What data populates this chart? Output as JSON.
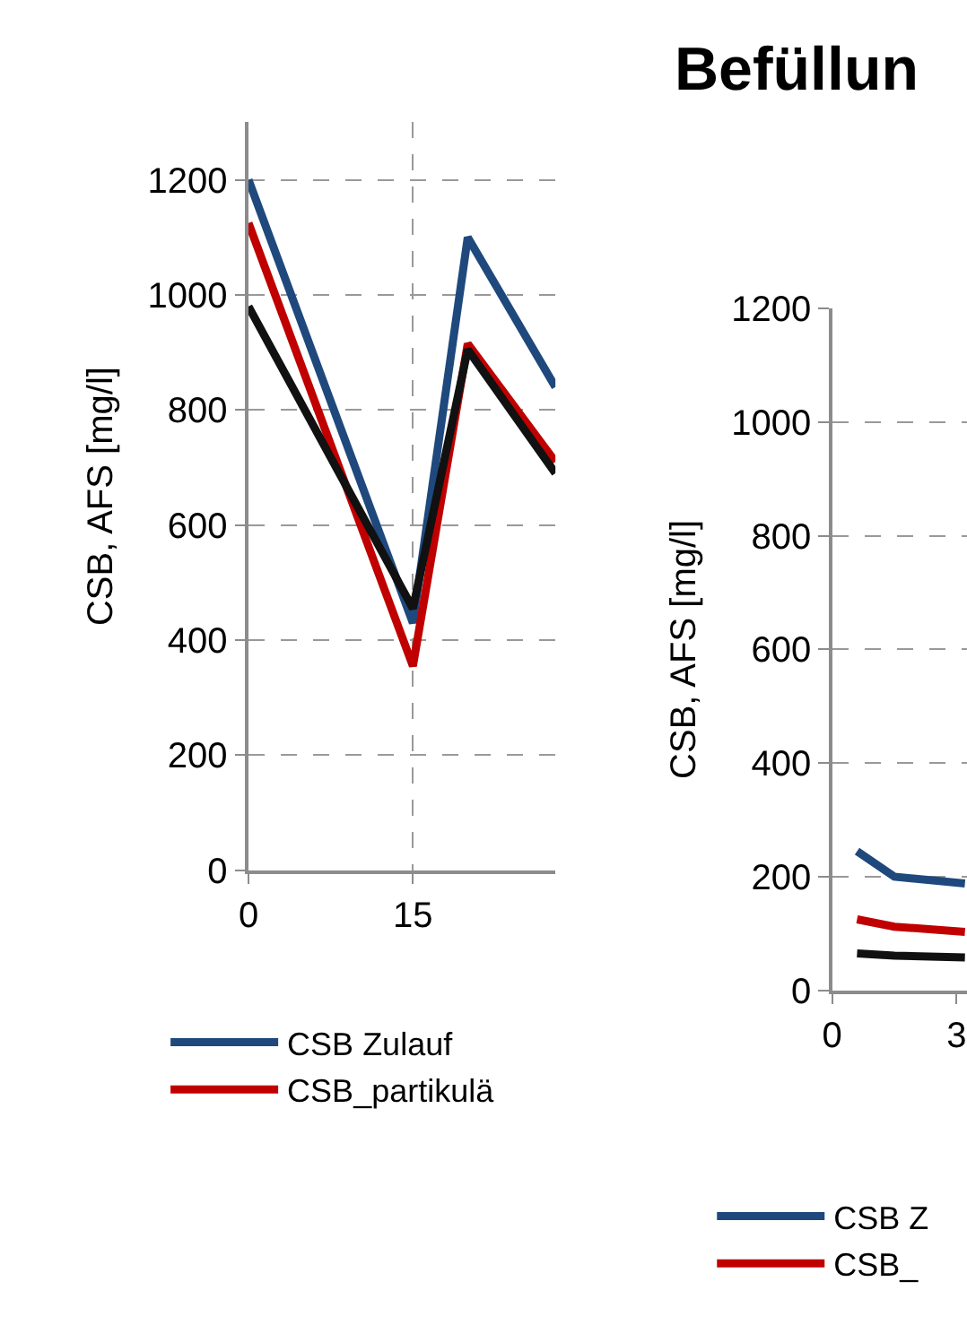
{
  "chart_data": [
    {
      "type": "line",
      "ylabel": "CSB, AFS [mg/l]",
      "x": [
        0,
        15,
        20,
        28
      ],
      "xlim": [
        0,
        28
      ],
      "xticks": [
        0,
        15
      ],
      "ylim": [
        0,
        1300
      ],
      "yticks": [
        0,
        200,
        400,
        600,
        800,
        1000,
        1200
      ],
      "grid": true,
      "legend": "bottom",
      "marker": "none",
      "line_style": "solid",
      "series": [
        {
          "name": "CSB Zulauf",
          "color": "#1f497d",
          "values": [
            1200,
            430,
            1100,
            840
          ]
        },
        {
          "name": "CSB_partikulä",
          "color": "#c00000",
          "values": [
            1125,
            355,
            915,
            710
          ]
        },
        {
          "color": "#111111",
          "values": [
            980,
            455,
            905,
            690
          ]
        }
      ]
    },
    {
      "type": "line",
      "title": "Befüllun",
      "ylabel": "CSB, AFS [mg/l]",
      "x": [
        0.6,
        1.5,
        3.2
      ],
      "xlim": [
        0,
        3.25
      ],
      "xticks": [
        0,
        3
      ],
      "ylim": [
        0,
        1200
      ],
      "yticks": [
        0,
        200,
        400,
        600,
        800,
        1000,
        1200
      ],
      "grid": "y",
      "legend": "bottom",
      "marker": "none",
      "line_style": "solid",
      "series": [
        {
          "name": "CSB Z",
          "color": "#1f497d",
          "values": [
            245,
            200,
            188
          ]
        },
        {
          "name": "CSB_",
          "color": "#c00000",
          "values": [
            125,
            112,
            103
          ]
        },
        {
          "color": "#111111",
          "values": [
            65,
            61,
            58
          ]
        }
      ]
    }
  ]
}
